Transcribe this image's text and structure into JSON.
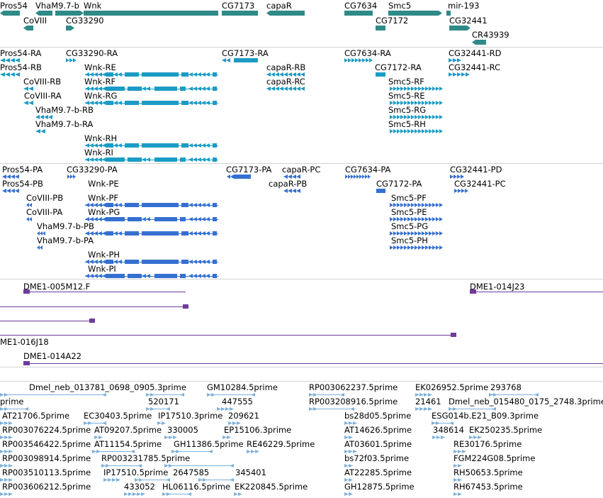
{
  "colors": {
    "gene": "#2f8a88",
    "mrna": "#1b9cc4",
    "protein": "#3570d1",
    "clone": "#6e3b9c",
    "est": "#7fb0d9",
    "separator": "#d3d3d3"
  },
  "tracks": {
    "genes": {
      "labels": [
        "Pros54",
        "VhaM9.7-b",
        "Wnk",
        "CG7173",
        "capaR",
        "CG7634",
        "Smc5",
        "mir-193",
        "CoVIII",
        "CG33290",
        "CG7172",
        "CG32441",
        "CR43939"
      ]
    },
    "mrna": {
      "labels": [
        "Pros54-RA",
        "CG33290-RA",
        "CG7173-RA",
        "CG7634-RA",
        "CG32441-RD",
        "Pros54-RB",
        "Wnk-RE",
        "capaR-RB",
        "CG7172-RA",
        "CG32441-RC",
        "CoVIII-RB",
        "Wnk-RF",
        "capaR-RC",
        "Smc5-RF",
        "CoVIII-RA",
        "Wnk-RG",
        "Smc5-RE",
        "VhaM9.7-b-RB",
        "Smc5-RG",
        "VhaM9.7-b-RA",
        "Smc5-RH",
        "Wnk-RH",
        "Wnk-RI"
      ]
    },
    "protein": {
      "labels": [
        "Pros54-PA",
        "CG33290-PA",
        "CG7173-PA",
        "capaR-PC",
        "CG7634-PA",
        "CG32441-PD",
        "Pros54-PB",
        "capaR-PB",
        "CG7172-PA",
        "CG32441-PC",
        "Wnk-PE",
        "CoVIII-PB",
        "Wnk-PF",
        "Smc5-PF",
        "CoVIII-PA",
        "Wnk-PG",
        "Smc5-PE",
        "VhaM9.7-b-PB",
        "Smc5-PG",
        "VhaM9.7-b-PA",
        "Smc5-PH",
        "Wnk-PH",
        "Wnk-PI"
      ]
    },
    "clones": {
      "labels": [
        "DME1-005M12.F",
        "DME1-014J23",
        "ME1-016J18",
        "DME1-014A22"
      ]
    },
    "ests": {
      "labels": [
        "Dmel_neb_013781_0698_0905.3prime",
        "GM10284.5prime",
        "RP003062237.5prime",
        "EK026952.5prime",
        "293768",
        "prime",
        "520171",
        "447555",
        "RP003208916.5prime",
        "21461",
        "Dmel_neb_015480_0175_2748.3prime",
        "AT21706.5prime",
        "EC30403.5prime",
        "IP17510.3prime",
        "209621",
        "bs28d05.5prime",
        "ESG014b.E21_B09.3prime",
        "RP003076224.5prime",
        "AT09207.5prime",
        "330005",
        "EP15106.3prime",
        "AT14626.5prime",
        "348614",
        "EK250235.5prime",
        "RP003546422.5prime",
        "AT11154.5prime",
        "GH11386.5prime",
        "RE46229.5prime",
        "AT03601.5prime",
        "RE30176.5prime",
        "RP003098914.5prime",
        "RP003231785.5prime",
        "bs72f03.5prime",
        "FGM224G08.5prime",
        "RP003510113.5prime",
        "IP17510.5prime",
        "2647585",
        "345401",
        "AT22285.5prime",
        "RH50653.5prime",
        "RP003606212.5prime",
        "433052",
        "HL06116.5prime",
        "EK220845.5prime",
        "GH12875.5prime",
        "RH67453.5prime"
      ]
    }
  }
}
